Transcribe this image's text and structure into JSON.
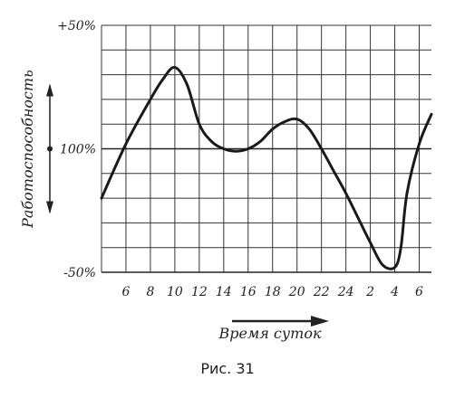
{
  "chart_data": {
    "type": "line",
    "ylabel": "Работоспособность",
    "xlabel": "Время суток",
    "caption": "Рис. 31",
    "y_ticks": [
      {
        "label": "+50%",
        "value": 50
      },
      {
        "label": "100%",
        "value": 0
      },
      {
        "label": "-50%",
        "value": -50
      }
    ],
    "x_ticks": [
      "6",
      "8",
      "10",
      "12",
      "14",
      "16",
      "18",
      "20",
      "22",
      "24",
      "2",
      "4",
      "6"
    ],
    "ylim": [
      -50,
      50
    ],
    "xlim": [
      4,
      31
    ],
    "grid": true,
    "series": [
      {
        "x": [
          4,
          6,
          8,
          9,
          10,
          11,
          12,
          13,
          14,
          15,
          16,
          17,
          18,
          19,
          20,
          21,
          22,
          23,
          24,
          25,
          26,
          27,
          28,
          28.5,
          29,
          30,
          31
        ],
        "y": [
          -20,
          2,
          20,
          28,
          33,
          26,
          10,
          3,
          0,
          -1,
          0,
          3,
          8,
          11,
          12,
          8,
          0,
          -9,
          -18,
          -28,
          -38,
          -47,
          -48,
          -40,
          -18,
          2,
          14
        ]
      }
    ]
  }
}
